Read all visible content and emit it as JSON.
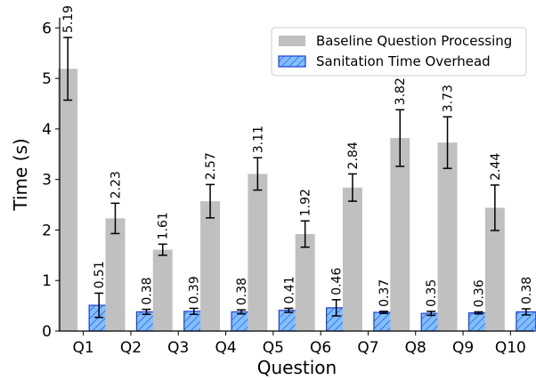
{
  "chart_data": {
    "type": "bar",
    "xlabel": "Question",
    "ylabel": "Time (s)",
    "ylim": [
      0,
      6.2
    ],
    "yticks": [
      0,
      1,
      2,
      3,
      4,
      5,
      6
    ],
    "categories": [
      "Q1",
      "Q2",
      "Q3",
      "Q4",
      "Q5",
      "Q6",
      "Q7",
      "Q8",
      "Q9",
      "Q10"
    ],
    "series": [
      {
        "name": "Baseline Question Processing",
        "color": "#c0c0c0",
        "hatch": false,
        "values": [
          5.19,
          2.23,
          1.61,
          2.57,
          3.11,
          1.92,
          2.84,
          3.82,
          3.73,
          2.44
        ],
        "value_labels": [
          "5.19",
          "2.23",
          "1.61",
          "2.57",
          "3.11",
          "1.92",
          "2.84",
          "3.82",
          "3.73",
          "2.44"
        ],
        "error": [
          0.62,
          0.3,
          0.11,
          0.33,
          0.32,
          0.26,
          0.27,
          0.56,
          0.51,
          0.45
        ]
      },
      {
        "name": "Sanitation Time Overhead",
        "color": "#7fbfff",
        "edge_color": "#1f3fd8",
        "hatch": true,
        "values": [
          0.51,
          0.38,
          0.39,
          0.38,
          0.41,
          0.46,
          0.37,
          0.35,
          0.36,
          0.38
        ],
        "value_labels": [
          "0.51",
          "0.38",
          "0.39",
          "0.38",
          "0.41",
          "0.46",
          "0.37",
          "0.35",
          "0.36",
          "0.38"
        ],
        "error": [
          0.24,
          0.05,
          0.06,
          0.04,
          0.04,
          0.16,
          0.02,
          0.04,
          0.02,
          0.06
        ]
      }
    ],
    "legend_position": "top-right",
    "grid": false
  }
}
